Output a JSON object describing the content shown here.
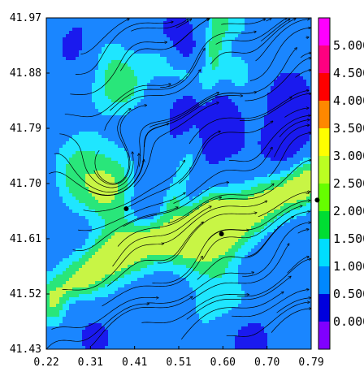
{
  "chart_data": {
    "type": "heatmap",
    "subtype": "filled contour with streamlines",
    "title": "",
    "xlabel": "",
    "ylabel": "",
    "xlim": [
      0.22,
      0.79
    ],
    "ylim": [
      41.43,
      41.97
    ],
    "x_ticks": [
      "0.22",
      "0.31",
      "0.41",
      "0.51",
      "0.60",
      "0.70",
      "0.79"
    ],
    "y_ticks": [
      "41.97",
      "41.88",
      "41.79",
      "41.70",
      "41.61",
      "41.52",
      "41.43"
    ],
    "colorbar": {
      "ticks": [
        "5.000",
        "4.500",
        "4.000",
        "3.500",
        "3.000",
        "2.500",
        "2.000",
        "1.500",
        "1.000",
        "0.500",
        "0.000"
      ],
      "levels": [
        0.0,
        0.5,
        1.0,
        1.5,
        2.0,
        2.5,
        3.0,
        3.5,
        4.0,
        4.5,
        5.0
      ],
      "colors": [
        "#8000ff",
        "#0000dd",
        "#0088ff",
        "#00ddff",
        "#00dd33",
        "#66ff00",
        "#bbff22",
        "#ffff00",
        "#ff8800",
        "#ff0000",
        "#ff0080",
        "#ff00ff"
      ]
    },
    "colors": {
      "dark_blue": "#1a1aee",
      "mid_blue": "#1a86ff",
      "cyan": "#1fe6ff",
      "green": "#29e67a",
      "yellow_green": "#c8f545",
      "stream": "#000000"
    },
    "high_band_points": [
      [
        0.24,
        41.51
      ],
      [
        0.34,
        41.57
      ],
      [
        0.45,
        41.61
      ],
      [
        0.55,
        41.62
      ],
      [
        0.65,
        41.65
      ],
      [
        0.72,
        41.68
      ],
      [
        0.78,
        41.71
      ]
    ],
    "upper_band_points": [
      [
        0.49,
        41.67
      ],
      [
        0.53,
        41.75
      ],
      [
        0.56,
        41.83
      ],
      [
        0.58,
        41.92
      ],
      [
        0.59,
        41.96
      ]
    ],
    "markers": [
      [
        0.392,
        41.659
      ],
      [
        0.597,
        41.618
      ],
      [
        0.803,
        41.673
      ]
    ],
    "grid": false,
    "legend": "colorbar-right"
  }
}
